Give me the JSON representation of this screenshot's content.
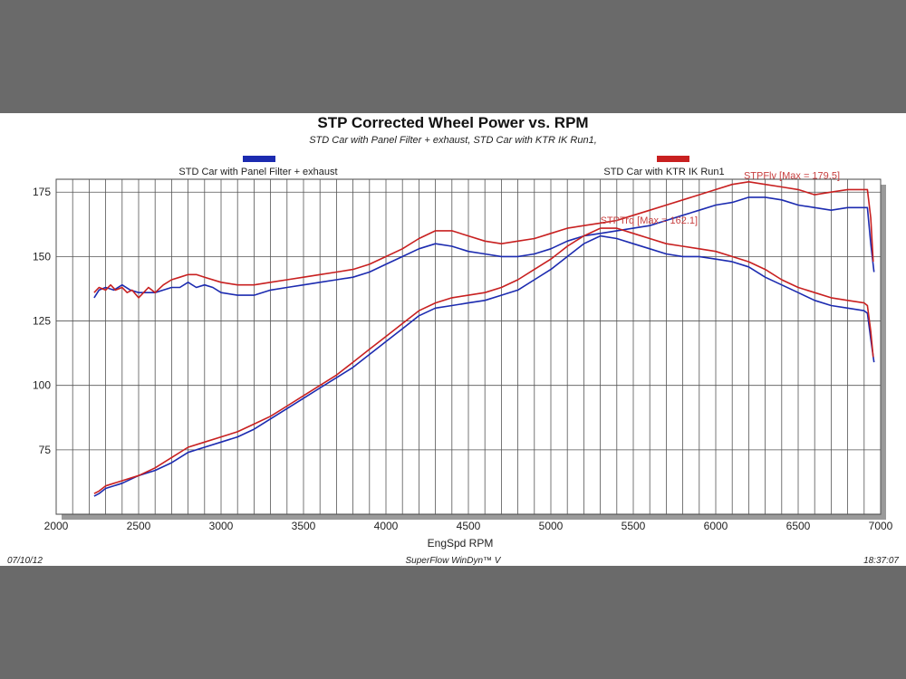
{
  "chart_data": {
    "type": "line",
    "title": "STP Corrected Wheel Power vs. RPM",
    "subtitle": "STD Car with Panel Filter + exhaust, STD Car with KTR IK Run1,",
    "xlabel": "EngSpd RPM",
    "ylabel": "",
    "xlim": [
      2000,
      7000
    ],
    "ylim": [
      50,
      180
    ],
    "x_ticks": [
      2000,
      2500,
      3000,
      3500,
      4000,
      4500,
      5000,
      5500,
      6000,
      6500,
      7000
    ],
    "y_ticks": [
      75,
      100,
      125,
      150,
      175
    ],
    "grid": true,
    "legend_placement": "top",
    "footer": {
      "date": "07/10/12",
      "software": "SuperFlow WinDyn™ V",
      "time": "18:37:07"
    },
    "annotations": [
      {
        "text": "STPFlv [Max = 179.5]",
        "x": 6170,
        "y": 179.5
      },
      {
        "text": "STPTrq [Max = 162.1]",
        "x": 5300,
        "y": 162.1
      }
    ],
    "series": [
      {
        "name": "STD Car with Panel Filter + exhaust",
        "color": "#1c2bb0",
        "curves": [
          {
            "x": [
              2230,
              2260,
              2300,
              2350,
              2400,
              2450,
              2500,
              2550,
              2600,
              2650,
              2700,
              2750,
              2800,
              2850,
              2900,
              2950,
              3000,
              3100,
              3200,
              3300,
              3400,
              3500,
              3600,
              3700,
              3800,
              3900,
              4000,
              4100,
              4200,
              4300,
              4400,
              4500,
              4600,
              4700,
              4800,
              4900,
              5000,
              5100,
              5200,
              5300,
              5400,
              5500,
              5600,
              5700,
              5800,
              5900,
              6000,
              6100,
              6200,
              6300,
              6400,
              6500,
              6600,
              6700,
              6800,
              6900,
              6920,
              6940,
              6960
            ],
            "y": [
              134,
              137,
              138,
              137,
              139,
              137,
              136,
              136,
              136,
              137,
              138,
              138,
              140,
              138,
              139,
              138,
              136,
              135,
              135,
              137,
              138,
              139,
              140,
              141,
              142,
              144,
              147,
              150,
              153,
              155,
              154,
              152,
              151,
              150,
              150,
              151,
              153,
              156,
              158,
              159,
              160,
              161,
              162,
              164,
              166,
              168,
              170,
              171,
              173,
              173,
              172,
              170,
              169,
              168,
              169,
              169,
              169,
              155,
              144
            ]
          },
          {
            "x": [
              2230,
              2260,
              2300,
              2400,
              2500,
              2600,
              2700,
              2800,
              2900,
              3000,
              3100,
              3200,
              3300,
              3400,
              3500,
              3600,
              3700,
              3800,
              3900,
              4000,
              4100,
              4200,
              4300,
              4400,
              4500,
              4600,
              4700,
              4800,
              4900,
              5000,
              5100,
              5200,
              5300,
              5400,
              5500,
              5600,
              5700,
              5800,
              5900,
              6000,
              6100,
              6200,
              6300,
              6400,
              6500,
              6600,
              6700,
              6800,
              6900,
              6920,
              6940,
              6960
            ],
            "y": [
              57,
              58,
              60,
              62,
              65,
              67,
              70,
              74,
              76,
              78,
              80,
              83,
              87,
              91,
              95,
              99,
              103,
              107,
              112,
              117,
              122,
              127,
              130,
              131,
              132,
              133,
              135,
              137,
              141,
              145,
              150,
              155,
              158,
              157,
              155,
              153,
              151,
              150,
              150,
              149,
              148,
              146,
              142,
              139,
              136,
              133,
              131,
              130,
              129,
              128,
              118,
              109
            ]
          }
        ]
      },
      {
        "name": "STD Car with KTR IK Run1",
        "color": "#c82020",
        "curves": [
          {
            "x": [
              2230,
              2260,
              2300,
              2330,
              2360,
              2400,
              2430,
              2460,
              2500,
              2530,
              2560,
              2600,
              2650,
              2700,
              2750,
              2800,
              2850,
              2900,
              3000,
              3100,
              3200,
              3300,
              3400,
              3500,
              3600,
              3700,
              3800,
              3900,
              4000,
              4100,
              4200,
              4300,
              4400,
              4500,
              4600,
              4700,
              4800,
              4900,
              5000,
              5100,
              5200,
              5300,
              5400,
              5500,
              5600,
              5700,
              5800,
              5900,
              6000,
              6100,
              6200,
              6300,
              6400,
              6500,
              6600,
              6700,
              6800,
              6900,
              6920,
              6940,
              6955
            ],
            "y": [
              136,
              138,
              137,
              139,
              137,
              138,
              136,
              137,
              134,
              136,
              138,
              136,
              139,
              141,
              142,
              143,
              143,
              142,
              140,
              139,
              139,
              140,
              141,
              142,
              143,
              144,
              145,
              147,
              150,
              153,
              157,
              160,
              160,
              158,
              156,
              155,
              156,
              157,
              159,
              161,
              162,
              163,
              164,
              166,
              168,
              170,
              172,
              174,
              176,
              178,
              179,
              178,
              177,
              176,
              174,
              175,
              176,
              176,
              176,
              165,
              148
            ]
          },
          {
            "x": [
              2230,
              2260,
              2300,
              2400,
              2500,
              2600,
              2700,
              2800,
              2900,
              3000,
              3100,
              3200,
              3300,
              3400,
              3500,
              3600,
              3700,
              3800,
              3900,
              4000,
              4100,
              4200,
              4300,
              4400,
              4500,
              4600,
              4700,
              4800,
              4900,
              5000,
              5100,
              5200,
              5300,
              5400,
              5500,
              5600,
              5700,
              5800,
              5900,
              6000,
              6100,
              6200,
              6300,
              6400,
              6500,
              6600,
              6700,
              6800,
              6900,
              6920,
              6940,
              6955
            ],
            "y": [
              58,
              59,
              61,
              63,
              65,
              68,
              72,
              76,
              78,
              80,
              82,
              85,
              88,
              92,
              96,
              100,
              104,
              109,
              114,
              119,
              124,
              129,
              132,
              134,
              135,
              136,
              138,
              141,
              145,
              149,
              154,
              158,
              161,
              161,
              159,
              157,
              155,
              154,
              153,
              152,
              150,
              148,
              145,
              141,
              138,
              136,
              134,
              133,
              132,
              131,
              121,
              111
            ]
          }
        ]
      }
    ]
  }
}
